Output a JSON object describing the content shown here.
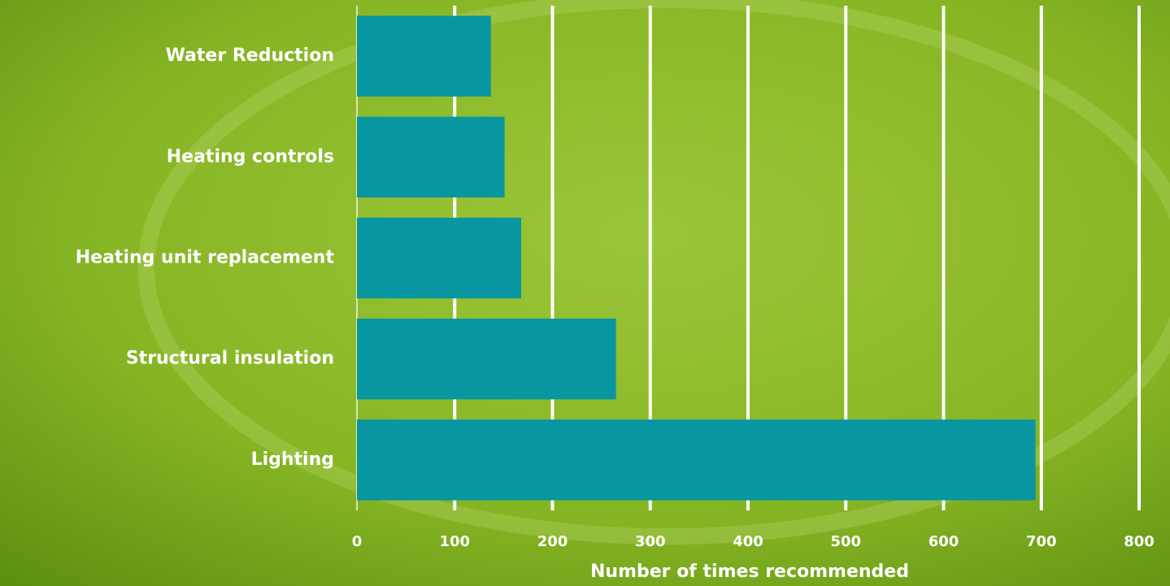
{
  "chart_data": {
    "type": "bar",
    "orientation": "horizontal",
    "categories": [
      "Water Reduction",
      "Heating controls",
      "Heating unit replacement",
      "Structural insulation",
      "Lighting"
    ],
    "values": [
      137,
      151,
      168,
      265,
      694
    ],
    "color": "#0896a0",
    "xlabel": "Number of times recommended",
    "xlim": [
      0,
      800
    ],
    "xticks": [
      0,
      100,
      200,
      300,
      400,
      500,
      600,
      700,
      800
    ],
    "grid": true
  }
}
